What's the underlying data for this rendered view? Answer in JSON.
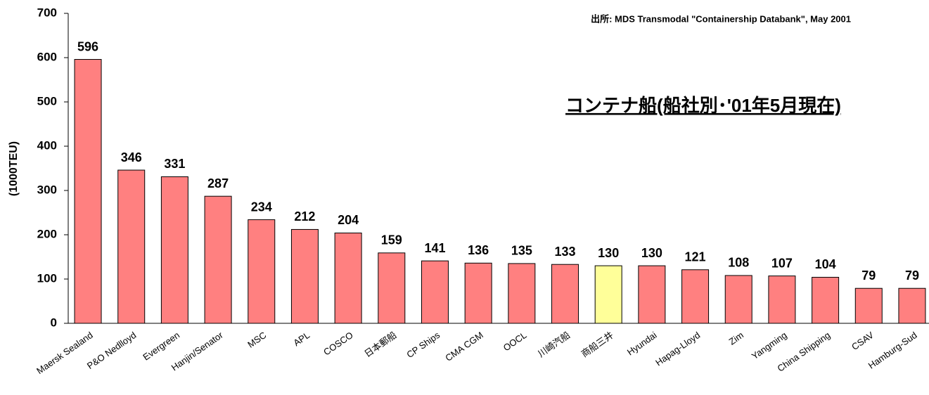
{
  "chart_data": {
    "type": "bar",
    "title": "コンテナ船(船社別･'01年5月現在)",
    "source": "出所: MDS Transmodal \"Containership Databank\", May 2001",
    "y_label": "(1000TEU)",
    "categories": [
      "Maersk Sealand",
      "P&O Nedlloyd",
      "Evergreen",
      "Hanjin/Senator",
      "MSC",
      "APL",
      "COSCO",
      "日本郵船",
      "CP Ships",
      "CMA CGM",
      "OOCL",
      "川崎汽船",
      "商船三井",
      "Hyundai",
      "Hapag-Lloyd",
      "Zim",
      "Yangming",
      "China Shipping",
      "CSAV",
      "Hamburg-Sud"
    ],
    "values": [
      596,
      346,
      331,
      287,
      234,
      212,
      204,
      159,
      141,
      136,
      135,
      133,
      130,
      130,
      121,
      108,
      107,
      104,
      79,
      79
    ],
    "colors": [
      "#ff8080",
      "#ff8080",
      "#ff8080",
      "#ff8080",
      "#ff8080",
      "#ff8080",
      "#ff8080",
      "#ff8080",
      "#ff8080",
      "#ff8080",
      "#ff8080",
      "#ff8080",
      "#ffff99",
      "#ff8080",
      "#ff8080",
      "#ff8080",
      "#ff8080",
      "#ff8080",
      "#ff8080",
      "#ff8080"
    ],
    "ylim": [
      0,
      700
    ],
    "yticks": [
      0,
      100,
      200,
      300,
      400,
      500,
      600,
      700
    ],
    "grid": false
  }
}
